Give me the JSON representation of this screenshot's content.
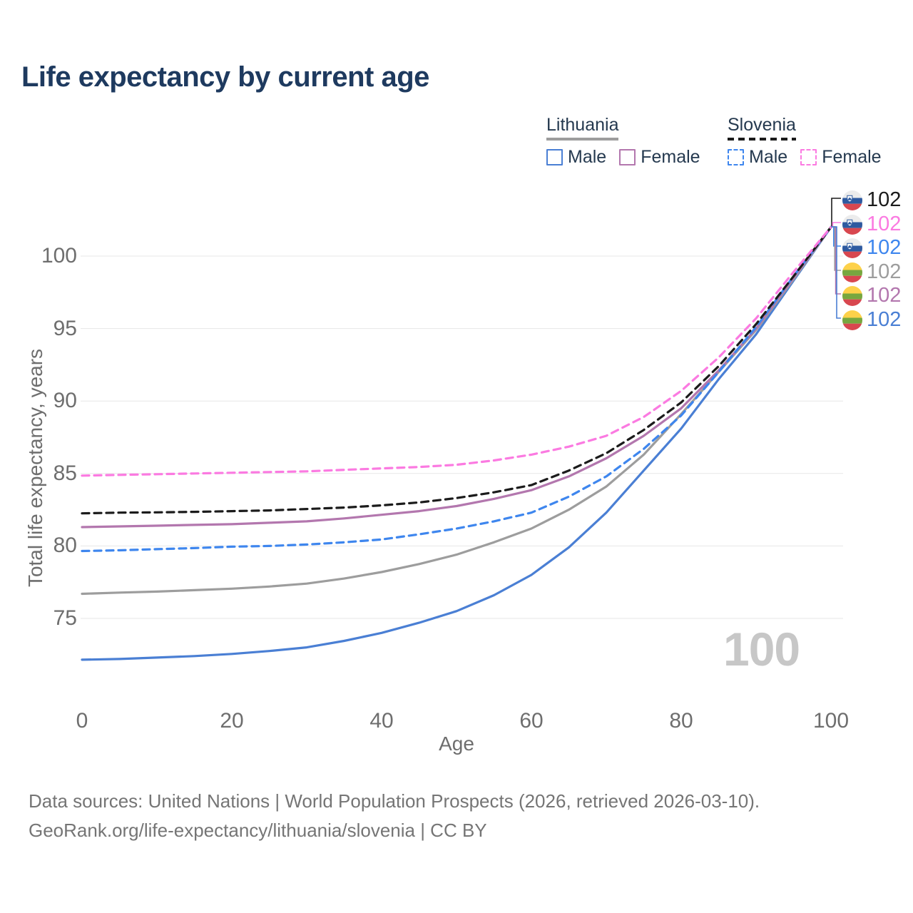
{
  "title": "Life expectancy by current age",
  "legend": {
    "groups": [
      {
        "country": "Lithuania",
        "style": "solid",
        "underline_color": "#9d9d9d",
        "entries": [
          {
            "label": "Male",
            "color": "#4a7fd4"
          },
          {
            "label": "Female",
            "color": "#b377ae"
          }
        ]
      },
      {
        "country": "Slovenia",
        "style": "dashed",
        "underline_color": "#1b1b1b",
        "entries": [
          {
            "label": "Male",
            "color": "#3e86ee"
          },
          {
            "label": "Female",
            "color": "#fb7ae1"
          }
        ]
      }
    ]
  },
  "watermark": "100",
  "footer": {
    "line1": "Data sources: United Nations | World Population Prospects (2026, retrieved 2026-03-10).",
    "line2": "GeoRank.org/life-expectancy/lithuania/slovenia | CC BY"
  },
  "flags": {
    "slovenia": {
      "bands": [
        "#ececec",
        "#2e5aa0",
        "#d8474f"
      ],
      "crest_color": "#2e5aa0"
    },
    "lithuania": {
      "bands": [
        "#fdd14a",
        "#77a73f",
        "#d8474f"
      ]
    }
  },
  "chart_data": {
    "type": "line",
    "title": "Life expectancy by current age",
    "xlabel": "Age",
    "ylabel": "Total life expectancy, years",
    "xlim": [
      0,
      100
    ],
    "ylim": [
      71,
      103
    ],
    "xticks": [
      0,
      20,
      40,
      60,
      80,
      100
    ],
    "yticks": [
      75,
      80,
      85,
      90,
      95,
      100
    ],
    "grid": "horizontal",
    "legend_position": "top-right",
    "x_ages": [
      0,
      5,
      10,
      15,
      20,
      25,
      30,
      35,
      40,
      45,
      50,
      55,
      60,
      65,
      70,
      75,
      80,
      85,
      90,
      95,
      100
    ],
    "series": [
      {
        "name": "Slovenia Both sexes",
        "country": "Slovenia",
        "dashed": true,
        "color": "#1b1b1b",
        "flag": "slovenia",
        "end_label": "102",
        "values": [
          82.25,
          82.3,
          82.32,
          82.35,
          82.4,
          82.45,
          82.55,
          82.65,
          82.8,
          83.0,
          83.3,
          83.7,
          84.2,
          85.2,
          86.4,
          88.0,
          89.9,
          92.4,
          95.3,
          98.6,
          102
        ]
      },
      {
        "name": "Slovenia Female",
        "country": "Slovenia",
        "dashed": true,
        "color": "#fb7ae1",
        "flag": "slovenia",
        "end_label": "102",
        "values": [
          84.85,
          84.9,
          84.95,
          85.0,
          85.05,
          85.1,
          85.15,
          85.25,
          85.35,
          85.45,
          85.6,
          85.9,
          86.3,
          86.85,
          87.6,
          88.9,
          90.7,
          93.0,
          95.7,
          98.9,
          102
        ]
      },
      {
        "name": "Slovenia Male",
        "country": "Slovenia",
        "dashed": true,
        "color": "#3e86ee",
        "flag": "slovenia",
        "end_label": "102",
        "values": [
          79.65,
          79.7,
          79.78,
          79.85,
          79.95,
          80.0,
          80.1,
          80.25,
          80.45,
          80.8,
          81.2,
          81.7,
          82.3,
          83.4,
          84.8,
          86.7,
          89.0,
          92.0,
          95.1,
          98.6,
          102
        ]
      },
      {
        "name": "Lithuania Both sexes",
        "country": "Lithuania",
        "dashed": false,
        "color": "#9d9d9d",
        "flag": "lithuania",
        "end_label": "102",
        "values": [
          76.7,
          76.78,
          76.85,
          76.95,
          77.05,
          77.2,
          77.4,
          77.75,
          78.2,
          78.75,
          79.4,
          80.25,
          81.2,
          82.5,
          84.1,
          86.3,
          89.1,
          92.0,
          94.9,
          98.4,
          102
        ]
      },
      {
        "name": "Lithuania Female",
        "country": "Lithuania",
        "dashed": false,
        "color": "#b377ae",
        "flag": "lithuania",
        "end_label": "102",
        "values": [
          81.3,
          81.35,
          81.4,
          81.45,
          81.5,
          81.6,
          81.7,
          81.9,
          82.15,
          82.4,
          82.75,
          83.25,
          83.85,
          84.8,
          86.05,
          87.6,
          89.5,
          92.1,
          95.0,
          98.5,
          102
        ]
      },
      {
        "name": "Lithuania Male",
        "country": "Lithuania",
        "dashed": false,
        "color": "#4a7fd4",
        "flag": "lithuania",
        "end_label": "102",
        "values": [
          72.15,
          72.2,
          72.3,
          72.4,
          72.55,
          72.75,
          73.0,
          73.45,
          74.0,
          74.7,
          75.5,
          76.6,
          78.0,
          79.9,
          82.3,
          85.2,
          88.1,
          91.5,
          94.6,
          98.3,
          102
        ]
      }
    ]
  }
}
